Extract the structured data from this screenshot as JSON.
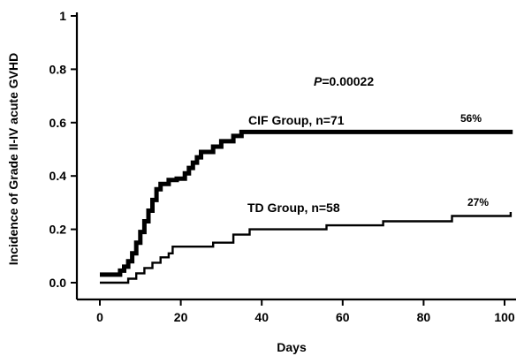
{
  "chart_data": {
    "type": "line",
    "step": true,
    "xlabel": "Days",
    "ylabel": "Incidence of Grade II-IV acute GVHD",
    "xlim": [
      0,
      102
    ],
    "ylim": [
      0,
      1
    ],
    "xticks": [
      0,
      20,
      40,
      60,
      80,
      100
    ],
    "yticks": [
      0.0,
      0.2,
      0.4,
      0.6,
      0.8,
      1
    ],
    "ytick_labels": [
      "0.0",
      "0.2",
      "0.4",
      "0.6",
      "0.8",
      "1"
    ],
    "grid": false,
    "annotations": {
      "p_value": {
        "italic": "P",
        "rest": "=0.00022"
      },
      "cif_label": "CIF Group, n=71",
      "cif_percent": "56%",
      "td_label": "TD Group, n=58",
      "td_percent": "27%"
    },
    "series": [
      {
        "name": "CIF Group, n=71",
        "points": [
          [
            0,
            0.03
          ],
          [
            3,
            0.03
          ],
          [
            5,
            0.045
          ],
          [
            6,
            0.06
          ],
          [
            7,
            0.08
          ],
          [
            8,
            0.11
          ],
          [
            9,
            0.15
          ],
          [
            10,
            0.19
          ],
          [
            11,
            0.23
          ],
          [
            12,
            0.27
          ],
          [
            13,
            0.31
          ],
          [
            14,
            0.35
          ],
          [
            15,
            0.37
          ],
          [
            17,
            0.385
          ],
          [
            19,
            0.39
          ],
          [
            21,
            0.41
          ],
          [
            22,
            0.43
          ],
          [
            23,
            0.45
          ],
          [
            24,
            0.47
          ],
          [
            25,
            0.49
          ],
          [
            28,
            0.51
          ],
          [
            30,
            0.53
          ],
          [
            33,
            0.55
          ],
          [
            35,
            0.565
          ],
          [
            102,
            0.565
          ]
        ]
      },
      {
        "name": "TD Group, n=58",
        "points": [
          [
            0,
            0.0
          ],
          [
            5,
            0.0
          ],
          [
            7,
            0.015
          ],
          [
            9,
            0.035
          ],
          [
            11,
            0.055
          ],
          [
            13,
            0.075
          ],
          [
            15,
            0.095
          ],
          [
            17,
            0.11
          ],
          [
            18,
            0.135
          ],
          [
            27,
            0.135
          ],
          [
            28,
            0.15
          ],
          [
            33,
            0.18
          ],
          [
            37,
            0.2
          ],
          [
            55,
            0.2
          ],
          [
            56,
            0.215
          ],
          [
            69,
            0.215
          ],
          [
            70,
            0.23
          ],
          [
            86,
            0.23
          ],
          [
            87,
            0.25
          ],
          [
            101,
            0.25
          ],
          [
            101.5,
            0.265
          ]
        ]
      }
    ]
  }
}
